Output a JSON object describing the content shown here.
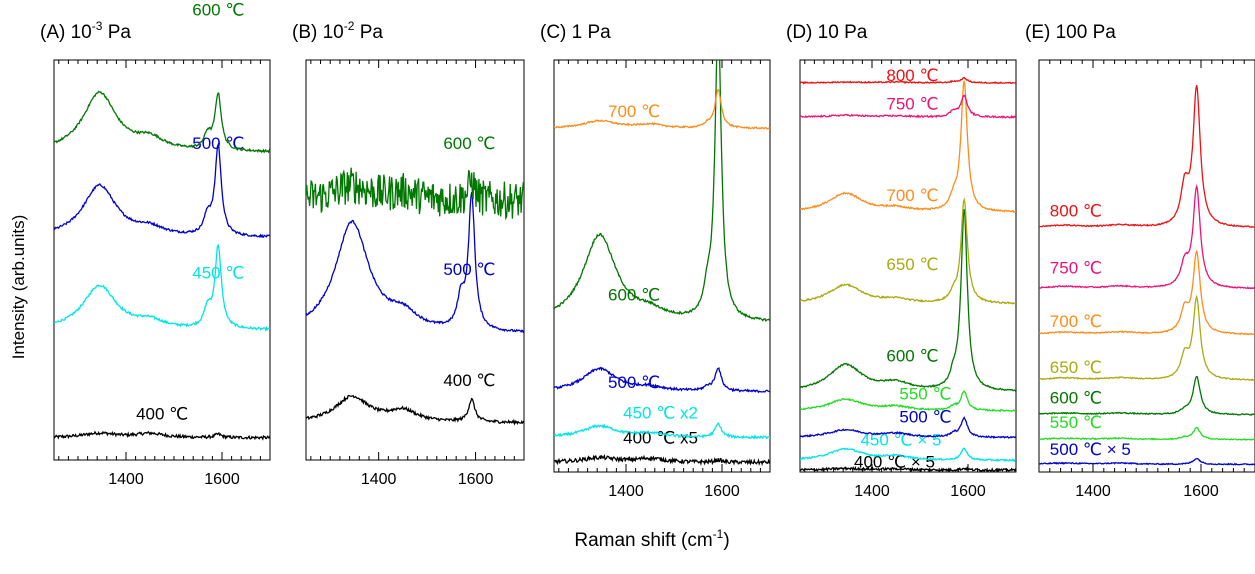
{
  "figure": {
    "ylabel": "Intensity (arb.units)",
    "xlabel_main": "Raman shift (cm",
    "xlabel_sup": "-1",
    "xlabel_tail": ")"
  },
  "chart_data": [
    {
      "type": "line",
      "panel_label": "(A)",
      "pressure_base": "10",
      "pressure_exp": "-3",
      "pressure_unit": " Pa",
      "xlim": [
        1250,
        1700
      ],
      "xticks": [
        1400,
        1600
      ],
      "xtick_labels": [
        "1400",
        "1600"
      ],
      "series": [
        {
          "name": "400 ℃",
          "color": "#000000",
          "baseline": 0.06,
          "noise": 0.004,
          "d": 0.012,
          "g": 0.009,
          "dp": 0,
          "d2": 0.011,
          "pos_label": [
            0.38,
            0.11
          ]
        },
        {
          "name": "450 ℃",
          "color": "#00e5e5",
          "baseline": 0.35,
          "noise": 0.003,
          "d": 0.12,
          "g": 0.22,
          "dp": 0.05,
          "d2": 0.02,
          "pos_label": [
            0.64,
            0.49
          ]
        },
        {
          "name": "500 ℃",
          "color": "#0000cc",
          "baseline": 0.6,
          "noise": 0.003,
          "d": 0.14,
          "g": 0.24,
          "dp": 0.05,
          "d2": 0.02,
          "pos_label": [
            0.64,
            0.84
          ]
        },
        {
          "name": "600 ℃",
          "color": "#007700",
          "baseline": 0.83,
          "noise": 0.003,
          "d": 0.16,
          "g": 0.15,
          "dp": 0.04,
          "d2": 0.03,
          "pos_label": [
            0.64,
            1.2
          ]
        }
      ]
    },
    {
      "type": "line",
      "panel_label": "(B)",
      "pressure_base": "10",
      "pressure_exp": "-2",
      "pressure_unit": " Pa",
      "xlim": [
        1250,
        1700
      ],
      "xticks": [
        1400,
        1600
      ],
      "xtick_labels": [
        "1400",
        "1600"
      ],
      "series": [
        {
          "name": "400 ℃",
          "color": "#000000",
          "baseline": 0.1,
          "noise": 0.004,
          "d": 0.07,
          "g": 0.06,
          "dp": 0,
          "d2": 0.03,
          "pos_label": [
            0.63,
            0.2
          ]
        },
        {
          "name": "500 ℃",
          "color": "#0000cc",
          "baseline": 0.34,
          "noise": 0.003,
          "d": 0.3,
          "g": 0.36,
          "dp": 0.08,
          "d2": 0.04,
          "pos_label": [
            0.63,
            0.5
          ]
        },
        {
          "name": "600 ℃",
          "color": "#007700",
          "baseline": 0.7,
          "noise": 0.05,
          "d": 0.04,
          "g": 0.05,
          "dp": 0,
          "d2": 0.02,
          "pos_label": [
            0.63,
            0.84
          ]
        }
      ]
    },
    {
      "type": "line",
      "panel_label": "(C)",
      "pressure_base": "1",
      "pressure_exp": "",
      "pressure_unit": " Pa",
      "xlim": [
        1250,
        1700
      ],
      "xticks": [
        1400,
        1600
      ],
      "xtick_labels": [
        "1400",
        "1600"
      ],
      "series": [
        {
          "name": "400 ℃  x5",
          "color": "#000000",
          "baseline": 0.025,
          "noise": 0.005,
          "d": 0.012,
          "g": 0.006,
          "dp": 0,
          "d2": 0.01,
          "pos_label": [
            0.32,
            0.075
          ]
        },
        {
          "name": "450 ℃  x2",
          "color": "#00e5e5",
          "baseline": 0.09,
          "noise": 0.003,
          "d": 0.03,
          "g": 0.035,
          "dp": 0,
          "d2": 0.01,
          "pos_label": [
            0.32,
            0.14
          ]
        },
        {
          "name": "500 ℃",
          "color": "#0000cc",
          "baseline": 0.21,
          "noise": 0.003,
          "d": 0.06,
          "g": 0.06,
          "dp": 0.01,
          "d2": 0.01,
          "pos_label": [
            0.25,
            0.22
          ]
        },
        {
          "name": "600 ℃",
          "color": "#007700",
          "baseline": 0.39,
          "noise": 0.003,
          "d": 0.23,
          "g": 0.78,
          "dp": 0.06,
          "d2": 0.02,
          "pos_label": [
            0.25,
            0.45
          ]
        },
        {
          "name": "700 ℃",
          "color": "#ff8c1a",
          "baseline": 0.9,
          "noise": 0.002,
          "d": 0.02,
          "g": 0.1,
          "dp": 0.01,
          "d2": 0.01,
          "pos_label": [
            0.25,
            0.93
          ]
        }
      ]
    },
    {
      "type": "line",
      "panel_label": "(D)",
      "pressure_base": "10",
      "pressure_exp": "",
      "pressure_unit": " Pa",
      "xlim": [
        1250,
        1700
      ],
      "xticks": [
        1400,
        1600
      ],
      "xtick_labels": [
        "1400",
        "1600"
      ],
      "series": [
        {
          "name": "400 ℃ × 5",
          "color": "#000000",
          "baseline": 0.005,
          "noise": 0.003,
          "d": 0.004,
          "g": 0.004,
          "dp": 0,
          "d2": 0.003,
          "pos_label": [
            0.25,
            0.012
          ]
        },
        {
          "name": "450 ℃ × 5",
          "color": "#00e5e5",
          "baseline": 0.03,
          "noise": 0.002,
          "d": 0.03,
          "g": 0.03,
          "dp": 0,
          "d2": 0.01,
          "pos_label": [
            0.28,
            0.07
          ]
        },
        {
          "name": "500 ℃",
          "color": "#0000cc",
          "baseline": 0.09,
          "noise": 0.002,
          "d": 0.02,
          "g": 0.05,
          "dp": 0.01,
          "d2": 0.01,
          "pos_label": [
            0.46,
            0.13
          ]
        },
        {
          "name": "550 ℃",
          "color": "#22dd22",
          "baseline": 0.16,
          "noise": 0.002,
          "d": 0.03,
          "g": 0.05,
          "dp": 0.01,
          "d2": 0.01,
          "pos_label": [
            0.46,
            0.19
          ]
        },
        {
          "name": "600 ℃",
          "color": "#007700",
          "baseline": 0.21,
          "noise": 0.002,
          "d": 0.07,
          "g": 0.47,
          "dp": 0.03,
          "d2": 0.02,
          "pos_label": [
            0.4,
            0.29
          ]
        },
        {
          "name": "650 ℃",
          "color": "#aaaa11",
          "baseline": 0.44,
          "noise": 0.002,
          "d": 0.05,
          "g": 0.27,
          "dp": 0.02,
          "d2": 0.01,
          "pos_label": [
            0.4,
            0.53
          ]
        },
        {
          "name": "700 ℃",
          "color": "#ff8c1a",
          "baseline": 0.68,
          "noise": 0.002,
          "d": 0.05,
          "g": 0.34,
          "dp": 0.03,
          "d2": 0.01,
          "pos_label": [
            0.4,
            0.71
          ]
        },
        {
          "name": "750 ℃",
          "color": "#ee1177",
          "baseline": 0.93,
          "noise": 0.002,
          "d": 0.005,
          "g": 0.055,
          "dp": 0.015,
          "d2": 0.003,
          "pos_label": [
            0.4,
            0.95
          ]
        },
        {
          "name": "800 ℃",
          "color": "#ee1111",
          "baseline": 1.02,
          "noise": 0.0015,
          "d": 0.002,
          "g": 0.012,
          "dp": 0.003,
          "d2": 0.002,
          "pos_label": [
            0.4,
            1.025
          ]
        }
      ]
    },
    {
      "type": "line",
      "panel_label": "(E)",
      "pressure_base": "100",
      "pressure_exp": "",
      "pressure_unit": " Pa",
      "xlim": [
        1300,
        1700
      ],
      "xticks": [
        1400,
        1600
      ],
      "xtick_labels": [
        "1400",
        "1600"
      ],
      "series": [
        {
          "name": "500 ℃  × 5",
          "color": "#0000cc",
          "baseline": 0.02,
          "noise": 0.0015,
          "d": 0.003,
          "g": 0.015,
          "dp": 0,
          "d2": 0.003,
          "pos_label": [
            0.05,
            0.045
          ]
        },
        {
          "name": "550 ℃",
          "color": "#22dd22",
          "baseline": 0.085,
          "noise": 0.0015,
          "d": 0.003,
          "g": 0.03,
          "dp": 0.005,
          "d2": 0.003,
          "pos_label": [
            0.05,
            0.115
          ]
        },
        {
          "name": "600 ℃",
          "color": "#007700",
          "baseline": 0.15,
          "noise": 0.0015,
          "d": 0.004,
          "g": 0.1,
          "dp": 0.01,
          "d2": 0.004,
          "pos_label": [
            0.05,
            0.18
          ]
        },
        {
          "name": "650 ℃",
          "color": "#aaaa11",
          "baseline": 0.24,
          "noise": 0.0015,
          "d": 0.006,
          "g": 0.21,
          "dp": 0.06,
          "d2": 0.006,
          "pos_label": [
            0.05,
            0.26
          ]
        },
        {
          "name": "700 ℃",
          "color": "#ff8c1a",
          "baseline": 0.36,
          "noise": 0.0015,
          "d": 0.006,
          "g": 0.21,
          "dp": 0.06,
          "d2": 0.006,
          "pos_label": [
            0.05,
            0.38
          ]
        },
        {
          "name": "750 ℃",
          "color": "#ee1177",
          "baseline": 0.48,
          "noise": 0.0015,
          "d": 0.006,
          "g": 0.26,
          "dp": 0.06,
          "d2": 0.006,
          "pos_label": [
            0.05,
            0.52
          ]
        },
        {
          "name": "800 ℃",
          "color": "#ee1111",
          "baseline": 0.64,
          "noise": 0.0015,
          "d": 0.006,
          "g": 0.36,
          "dp": 0.1,
          "d2": 0.006,
          "pos_label": [
            0.05,
            0.67
          ]
        }
      ]
    }
  ]
}
